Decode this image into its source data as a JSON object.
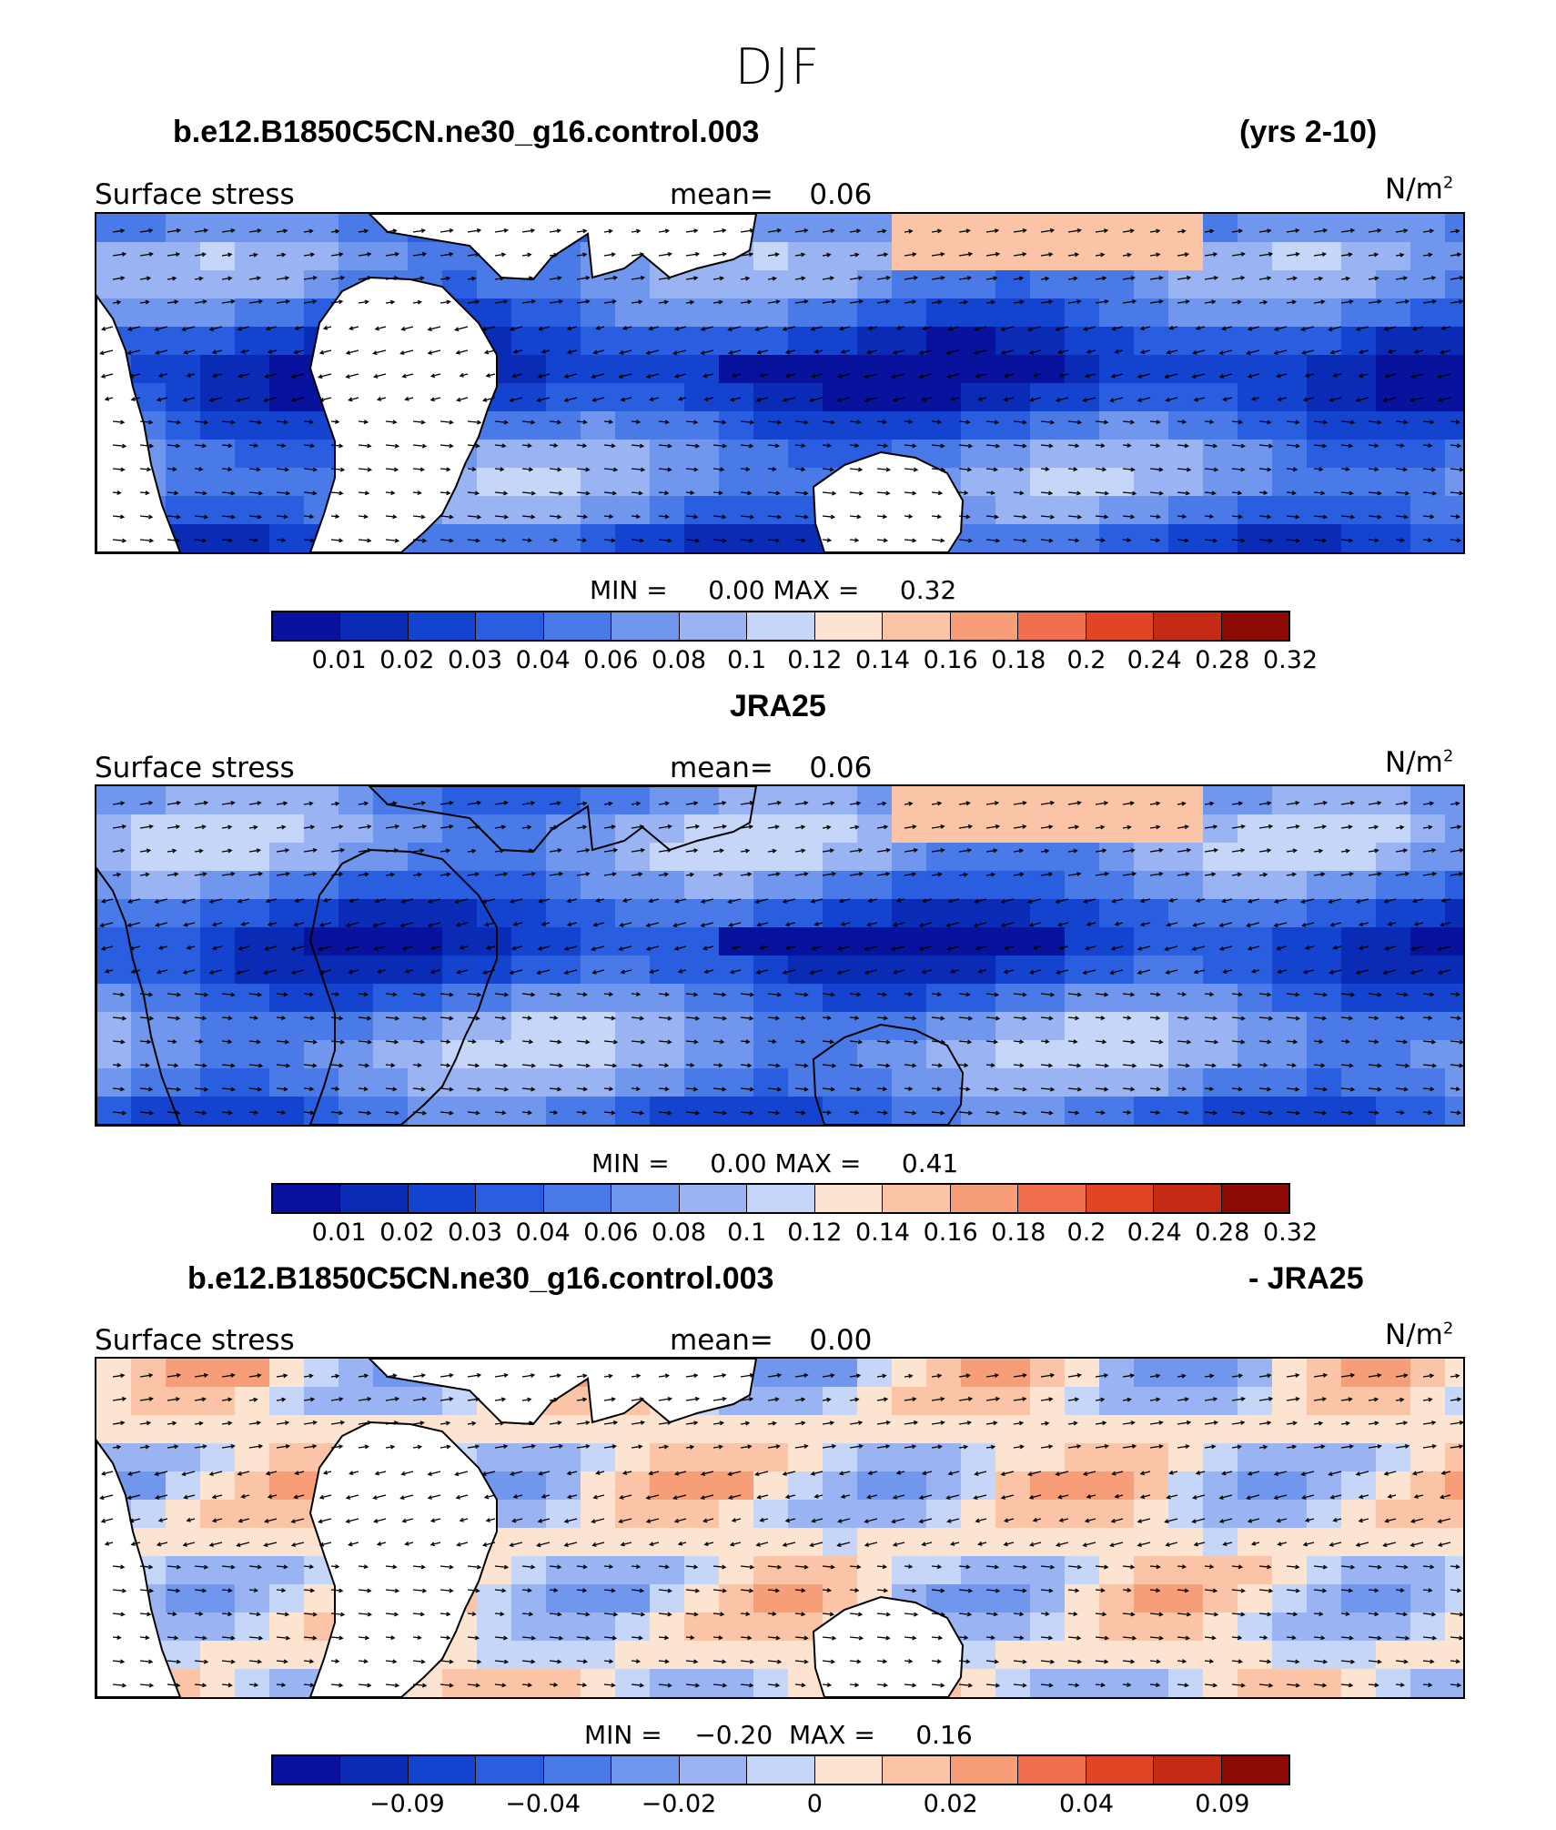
{
  "figure_title": "DJF",
  "panels": [
    {
      "title_left": "b.e12.B1850C5CN.ne30_g16.control.003",
      "title_right": "(yrs 2-10)",
      "field_label": "Surface stress",
      "mean_label": "mean=",
      "mean_value": "0.06",
      "units_base": "N/m",
      "units_sup": "2",
      "min_label": "MIN =",
      "min_value": "0.00",
      "max_label": "MAX =",
      "max_value": "0.32",
      "colorbar_ticks": [
        "0.01",
        "0.02",
        "0.03",
        "0.04",
        "0.06",
        "0.08",
        "0.1",
        "0.12",
        "0.14",
        "0.16",
        "0.18",
        "0.2",
        "0.24",
        "0.28",
        "0.32"
      ]
    },
    {
      "title_left": "JRA25",
      "title_right": "",
      "field_label": "Surface stress",
      "mean_label": "mean=",
      "mean_value": "0.06",
      "units_base": "N/m",
      "units_sup": "2",
      "min_label": "MIN =",
      "min_value": "0.00",
      "max_label": "MAX =",
      "max_value": "0.41",
      "colorbar_ticks": [
        "0.01",
        "0.02",
        "0.03",
        "0.04",
        "0.06",
        "0.08",
        "0.1",
        "0.12",
        "0.14",
        "0.16",
        "0.18",
        "0.2",
        "0.24",
        "0.28",
        "0.32"
      ]
    },
    {
      "title_left": "b.e12.B1850C5CN.ne30_g16.control.003",
      "title_right": "- JRA25",
      "field_label": "Surface stress",
      "mean_label": "mean=",
      "mean_value": "0.00",
      "units_base": "N/m",
      "units_sup": "2",
      "min_label": "MIN =",
      "min_value": "−0.20",
      "max_label": "MAX =",
      "max_value": "0.16",
      "colorbar_ticks": [
        "",
        "−0.09",
        "",
        "−0.04",
        "",
        "−0.02",
        "",
        "0",
        "",
        "0.02",
        "",
        "0.04",
        "",
        "0.09",
        ""
      ]
    }
  ],
  "colormap": [
    "#08129c",
    "#0a2bb6",
    "#1443cf",
    "#2a5ee0",
    "#4a7ae8",
    "#7096ee",
    "#9ab4f3",
    "#c6d6f8",
    "#fde4d0",
    "#fbc4a6",
    "#f79d78",
    "#f0704d",
    "#e24426",
    "#c52a15",
    "#8e0a06"
  ],
  "land_color": "#ffffff",
  "coast_color": "#000000"
}
